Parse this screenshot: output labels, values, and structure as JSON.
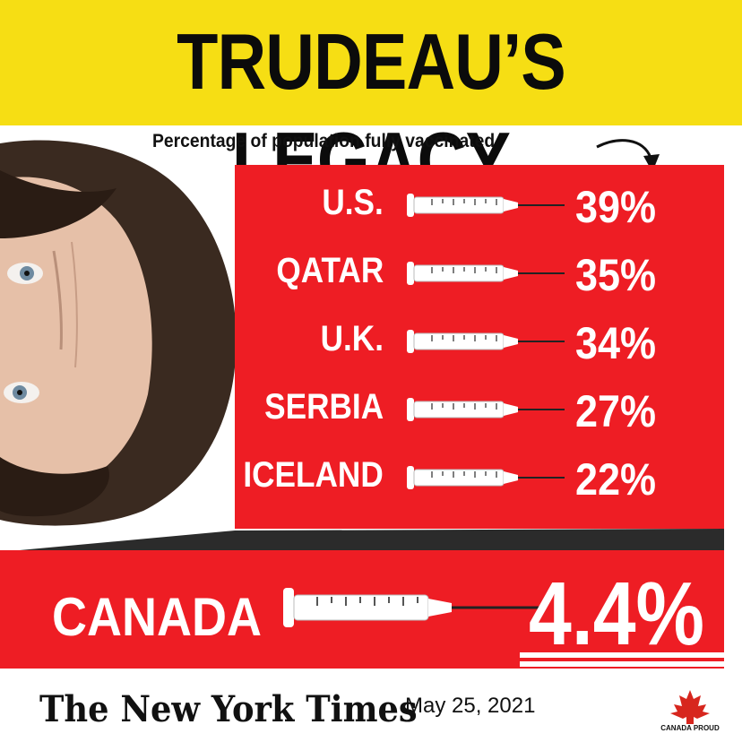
{
  "banner": {
    "title": "TRUDEAU’S LEGACY",
    "color": "#f6de14"
  },
  "colors": {
    "accent": "#ee1d24",
    "text": "#ffffff"
  },
  "chart_data": {
    "type": "bar",
    "title": "Percentage of population fully vaccinated",
    "categories": [
      "U.S.",
      "QATAR",
      "U.K.",
      "SERBIA",
      "ICELAND",
      "CANADA"
    ],
    "values": [
      39,
      35,
      34,
      27,
      22,
      4.4
    ],
    "value_labels": [
      "39%",
      "35%",
      "34%",
      "27%",
      "22%",
      "4.4%"
    ],
    "unit": "%",
    "icon": "syringe-icon"
  },
  "rows": [
    {
      "label": "U.S.",
      "value": "39%"
    },
    {
      "label": "QATAR",
      "value": "35%"
    },
    {
      "label": "U.K.",
      "value": "34%"
    },
    {
      "label": "SERBIA",
      "value": "27%"
    },
    {
      "label": "ICELAND",
      "value": "22%"
    }
  ],
  "highlight": {
    "label": "CANADA",
    "value": "4.4%"
  },
  "footer": {
    "source": "The New York Times",
    "date": "May 25, 2021",
    "logo_text": "CANADA PROUD"
  }
}
